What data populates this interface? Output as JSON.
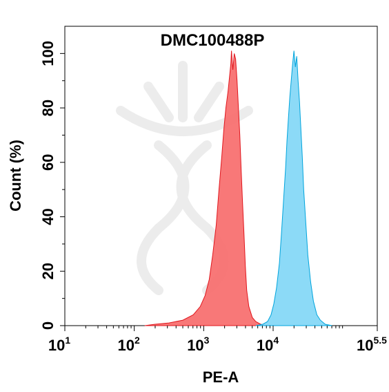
{
  "chart_data": {
    "type": "area",
    "title": "DMC100488P",
    "xlabel": "PE-A",
    "ylabel": "Count  (%)",
    "x_scale": "log10",
    "xlim": [
      1,
      5.5
    ],
    "ylim": [
      0,
      110
    ],
    "x_ticks": [
      {
        "base": "10",
        "exp": "1"
      },
      {
        "base": "10",
        "exp": "2"
      },
      {
        "base": "10",
        "exp": "3"
      },
      {
        "base": "10",
        "exp": "4"
      },
      {
        "base": "10",
        "exp": "5.5"
      }
    ],
    "y_ticks": [
      "0",
      "20",
      "40",
      "60",
      "80",
      "100"
    ],
    "series": [
      {
        "color_fill": "#f87171",
        "color_line": "#e0161d",
        "points": [
          [
            2.15,
            0
          ],
          [
            2.3,
            0.5
          ],
          [
            2.5,
            1
          ],
          [
            2.7,
            2
          ],
          [
            2.85,
            4
          ],
          [
            2.95,
            7
          ],
          [
            3.02,
            11
          ],
          [
            3.08,
            17
          ],
          [
            3.13,
            26
          ],
          [
            3.18,
            37
          ],
          [
            3.22,
            50
          ],
          [
            3.26,
            62
          ],
          [
            3.29,
            72
          ],
          [
            3.32,
            80
          ],
          [
            3.35,
            86
          ],
          [
            3.37,
            91
          ],
          [
            3.39,
            96
          ],
          [
            3.4,
            101
          ],
          [
            3.42,
            94
          ],
          [
            3.44,
            100
          ],
          [
            3.46,
            98
          ],
          [
            3.48,
            90
          ],
          [
            3.5,
            80
          ],
          [
            3.52,
            70
          ],
          [
            3.54,
            57
          ],
          [
            3.56,
            45
          ],
          [
            3.58,
            34
          ],
          [
            3.6,
            22
          ],
          [
            3.62,
            13
          ],
          [
            3.65,
            7
          ],
          [
            3.7,
            3
          ],
          [
            3.75,
            1.5
          ],
          [
            3.82,
            0.5
          ],
          [
            3.9,
            0
          ]
        ]
      },
      {
        "color_fill": "#86d8f7",
        "color_line": "#00a4dc",
        "points": [
          [
            3.75,
            0
          ],
          [
            3.85,
            0.5
          ],
          [
            3.92,
            1.5
          ],
          [
            3.97,
            4
          ],
          [
            4.01,
            8
          ],
          [
            4.05,
            14
          ],
          [
            4.09,
            23
          ],
          [
            4.12,
            34
          ],
          [
            4.15,
            46
          ],
          [
            4.18,
            58
          ],
          [
            4.2,
            68
          ],
          [
            4.22,
            76
          ],
          [
            4.24,
            84
          ],
          [
            4.26,
            90
          ],
          [
            4.28,
            96
          ],
          [
            4.3,
            101
          ],
          [
            4.32,
            95
          ],
          [
            4.34,
            99
          ],
          [
            4.36,
            90
          ],
          [
            4.38,
            82
          ],
          [
            4.4,
            72
          ],
          [
            4.42,
            62
          ],
          [
            4.44,
            50
          ],
          [
            4.47,
            38
          ],
          [
            4.5,
            26
          ],
          [
            4.54,
            16
          ],
          [
            4.58,
            9
          ],
          [
            4.63,
            4
          ],
          [
            4.68,
            2
          ],
          [
            4.75,
            0.5
          ],
          [
            4.85,
            0
          ]
        ]
      }
    ]
  }
}
